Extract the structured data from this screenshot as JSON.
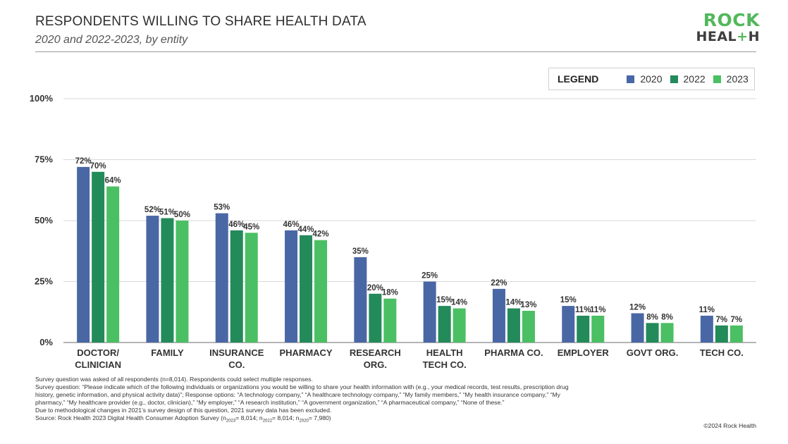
{
  "header": {
    "title": "RESPONDENTS WILLING TO SHARE HEALTH DATA",
    "subtitle": "2020 and 2022-2023, by entity"
  },
  "logo": {
    "line1": "ROCK",
    "line2_a": "HEAL",
    "line2_plus": "+",
    "line2_b": "H"
  },
  "legend": {
    "title": "LEGEND"
  },
  "colors": {
    "2020": "#4a67a5",
    "2022": "#238a5a",
    "2023": "#4bbf63",
    "grid": "#d9d9d9",
    "axis": "#888888"
  },
  "chart_data": {
    "type": "bar",
    "categories": [
      [
        "DOCTOR/",
        "CLINICIAN"
      ],
      [
        "FAMILY"
      ],
      [
        "INSURANCE",
        "CO."
      ],
      [
        "PHARMACY"
      ],
      [
        "RESEARCH",
        "ORG."
      ],
      [
        "HEALTH",
        "TECH  CO."
      ],
      [
        "PHARMA CO."
      ],
      [
        "EMPLOYER"
      ],
      [
        "GOVT ORG."
      ],
      [
        "TECH CO."
      ]
    ],
    "series": [
      {
        "name": "2020",
        "values": [
          72,
          52,
          53,
          46,
          35,
          25,
          22,
          15,
          12,
          11
        ]
      },
      {
        "name": "2022",
        "values": [
          70,
          51,
          46,
          44,
          20,
          15,
          14,
          11,
          8,
          7
        ]
      },
      {
        "name": "2023",
        "values": [
          64,
          50,
          45,
          42,
          18,
          14,
          13,
          11,
          8,
          7
        ]
      }
    ],
    "ylim": [
      0,
      100
    ],
    "yticks": [
      "0%",
      "25%",
      "50%",
      "75%",
      "100%"
    ],
    "ytick_values": [
      0,
      25,
      50,
      75,
      100
    ],
    "value_suffix": "%",
    "grid": true,
    "legend_position": "top-right"
  },
  "footnotes": {
    "line1": "Survey question was asked of all respondents (n=8,014). Respondents could select multiple responses.",
    "line2": "Survey question: “Please indicate which of the following individuals or organizations you would be willing to share your health information with (e.g., your medical records, test results, prescription drug history, genetic information, and physical activity data)”; Response options: “A technology company,” “A healthcare technology company,” “My family members,” “My health insurance company,” “My pharmacy,” “My healthcare provider (e.g., doctor, clinician),” “My employer,” “A research institution,” “A government organization,” “A pharmaceutical company,” “None of these.”",
    "line3": "Due to methodological changes in 2021’s survey design of this question, 2021 survey data has been excluded.",
    "source_a": "Source: Rock Health 2023 Digital Health Consumer Adoption Survey (n",
    "sub_2023": "2023",
    "mid_1": "= 8,014; n",
    "sub_2022": "2022",
    "mid_2": "= 8,014; n",
    "sub_2020": "2020",
    "end": "= 7,980)"
  },
  "copyright": "©2024 Rock Health"
}
